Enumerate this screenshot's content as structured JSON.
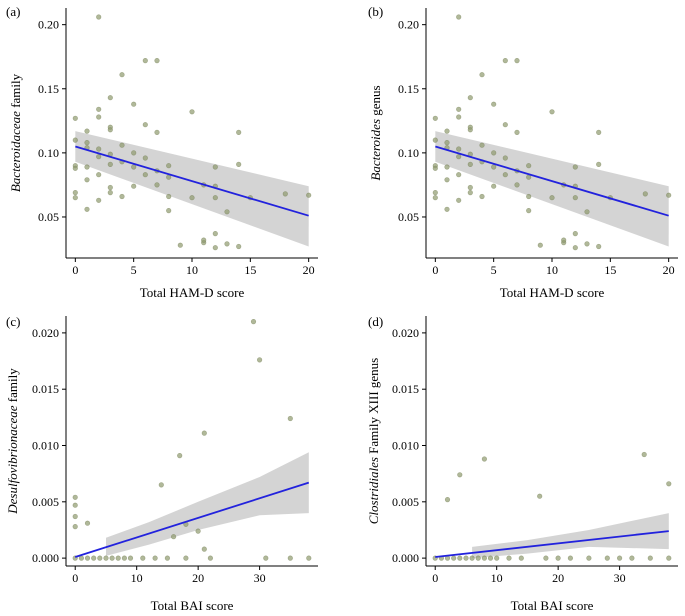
{
  "chart_data": [
    {
      "type": "scatter",
      "panel_label": "(a)",
      "ylabel_italic": "Bacteroidaceae",
      "ylabel_rest": " family",
      "xlabel": "Total HAM-D score",
      "xlim": [
        -0.8,
        20.8
      ],
      "ylim": [
        0.018,
        0.213
      ],
      "xticks": [
        0,
        5,
        10,
        15,
        20
      ],
      "yticks": [
        0.05,
        0.1,
        0.15,
        0.2
      ],
      "ytick_labels": [
        "0.05",
        "0.10",
        "0.15",
        "0.20"
      ],
      "fit": {
        "x": [
          0,
          20
        ],
        "y": [
          0.105,
          0.051
        ]
      },
      "ci_band": {
        "x": [
          0,
          20
        ],
        "upper": [
          0.117,
          0.074
        ],
        "lower": [
          0.093,
          0.027
        ]
      },
      "points": [
        [
          0,
          0.127
        ],
        [
          0,
          0.11
        ],
        [
          0,
          0.09
        ],
        [
          0,
          0.088
        ],
        [
          0,
          0.069
        ],
        [
          0,
          0.065
        ],
        [
          1,
          0.117
        ],
        [
          1,
          0.108
        ],
        [
          1,
          0.104
        ],
        [
          1,
          0.089
        ],
        [
          1,
          0.079
        ],
        [
          1,
          0.056
        ],
        [
          2,
          0.206
        ],
        [
          2,
          0.134
        ],
        [
          2,
          0.128
        ],
        [
          2,
          0.103
        ],
        [
          2,
          0.097
        ],
        [
          2,
          0.083
        ],
        [
          2,
          0.063
        ],
        [
          3,
          0.143
        ],
        [
          3,
          0.12
        ],
        [
          3,
          0.118
        ],
        [
          3,
          0.099
        ],
        [
          3,
          0.091
        ],
        [
          3,
          0.073
        ],
        [
          3,
          0.069
        ],
        [
          4,
          0.161
        ],
        [
          4,
          0.106
        ],
        [
          4,
          0.093
        ],
        [
          4,
          0.066
        ],
        [
          5,
          0.138
        ],
        [
          5,
          0.1
        ],
        [
          5,
          0.089
        ],
        [
          5,
          0.074
        ],
        [
          6,
          0.172
        ],
        [
          6,
          0.122
        ],
        [
          6,
          0.096
        ],
        [
          6,
          0.083
        ],
        [
          7,
          0.172
        ],
        [
          7,
          0.116
        ],
        [
          7,
          0.086
        ],
        [
          7,
          0.075
        ],
        [
          8,
          0.09
        ],
        [
          8,
          0.081
        ],
        [
          8,
          0.066
        ],
        [
          8,
          0.055
        ],
        [
          9,
          0.028
        ],
        [
          10,
          0.132
        ],
        [
          10,
          0.065
        ],
        [
          11,
          0.075
        ],
        [
          11,
          0.03
        ],
        [
          11,
          0.032
        ],
        [
          12,
          0.089
        ],
        [
          12,
          0.074
        ],
        [
          12,
          0.065
        ],
        [
          12,
          0.037
        ],
        [
          12,
          0.026
        ],
        [
          13,
          0.054
        ],
        [
          13,
          0.029
        ],
        [
          14,
          0.116
        ],
        [
          14,
          0.027
        ],
        [
          14,
          0.091
        ],
        [
          15,
          0.065
        ],
        [
          18,
          0.068
        ],
        [
          20,
          0.067
        ]
      ]
    },
    {
      "type": "scatter",
      "panel_label": "(b)",
      "ylabel_italic": "Bacteroides",
      "ylabel_rest": " genus",
      "xlabel": "Total HAM-D score",
      "xlim": [
        -0.8,
        20.8
      ],
      "ylim": [
        0.018,
        0.213
      ],
      "xticks": [
        0,
        5,
        10,
        15,
        20
      ],
      "yticks": [
        0.05,
        0.1,
        0.15,
        0.2
      ],
      "ytick_labels": [
        "0.05",
        "0.10",
        "0.15",
        "0.20"
      ],
      "fit": {
        "x": [
          0,
          20
        ],
        "y": [
          0.105,
          0.051
        ]
      },
      "ci_band": {
        "x": [
          0,
          20
        ],
        "upper": [
          0.117,
          0.074
        ],
        "lower": [
          0.093,
          0.027
        ]
      },
      "points": [
        [
          0,
          0.127
        ],
        [
          0,
          0.11
        ],
        [
          0,
          0.09
        ],
        [
          0,
          0.088
        ],
        [
          0,
          0.069
        ],
        [
          0,
          0.065
        ],
        [
          1,
          0.117
        ],
        [
          1,
          0.108
        ],
        [
          1,
          0.104
        ],
        [
          1,
          0.089
        ],
        [
          1,
          0.079
        ],
        [
          1,
          0.056
        ],
        [
          2,
          0.206
        ],
        [
          2,
          0.134
        ],
        [
          2,
          0.128
        ],
        [
          2,
          0.103
        ],
        [
          2,
          0.097
        ],
        [
          2,
          0.083
        ],
        [
          2,
          0.063
        ],
        [
          3,
          0.143
        ],
        [
          3,
          0.12
        ],
        [
          3,
          0.118
        ],
        [
          3,
          0.099
        ],
        [
          3,
          0.091
        ],
        [
          3,
          0.073
        ],
        [
          3,
          0.069
        ],
        [
          4,
          0.161
        ],
        [
          4,
          0.106
        ],
        [
          4,
          0.093
        ],
        [
          4,
          0.066
        ],
        [
          5,
          0.138
        ],
        [
          5,
          0.1
        ],
        [
          5,
          0.089
        ],
        [
          5,
          0.074
        ],
        [
          6,
          0.172
        ],
        [
          6,
          0.122
        ],
        [
          6,
          0.096
        ],
        [
          6,
          0.083
        ],
        [
          7,
          0.172
        ],
        [
          7,
          0.116
        ],
        [
          7,
          0.086
        ],
        [
          7,
          0.075
        ],
        [
          8,
          0.09
        ],
        [
          8,
          0.081
        ],
        [
          8,
          0.066
        ],
        [
          8,
          0.055
        ],
        [
          9,
          0.028
        ],
        [
          10,
          0.132
        ],
        [
          10,
          0.065
        ],
        [
          11,
          0.075
        ],
        [
          11,
          0.03
        ],
        [
          11,
          0.032
        ],
        [
          12,
          0.089
        ],
        [
          12,
          0.074
        ],
        [
          12,
          0.065
        ],
        [
          12,
          0.037
        ],
        [
          12,
          0.026
        ],
        [
          13,
          0.054
        ],
        [
          13,
          0.029
        ],
        [
          14,
          0.116
        ],
        [
          14,
          0.027
        ],
        [
          14,
          0.091
        ],
        [
          15,
          0.065
        ],
        [
          18,
          0.068
        ],
        [
          20,
          0.067
        ]
      ]
    },
    {
      "type": "scatter",
      "panel_label": "(c)",
      "ylabel_italic": "Desulfovibrionaceae",
      "ylabel_rest": " family",
      "xlabel": "Total BAI score",
      "xlim": [
        -1.5,
        39.5
      ],
      "ylim": [
        -0.0007,
        0.0215
      ],
      "xticks": [
        0,
        10,
        20,
        30
      ],
      "yticks": [
        0.0,
        0.005,
        0.01,
        0.015,
        0.02
      ],
      "ytick_labels": [
        "0.000",
        "0.005",
        "0.010",
        "0.015",
        "0.020"
      ],
      "fit": {
        "x": [
          0,
          38
        ],
        "y": [
          0.0001,
          0.0067
        ]
      },
      "ci_band": {
        "x": [
          5,
          12,
          20,
          30,
          38
        ],
        "upper": [
          0.0018,
          0.0032,
          0.005,
          0.0072,
          0.0094
        ],
        "lower": [
          0.0002,
          0.0012,
          0.0025,
          0.0038,
          0.004
        ]
      },
      "points": [
        [
          0,
          0.0054
        ],
        [
          0,
          0.0047
        ],
        [
          0,
          0.0037
        ],
        [
          0,
          0.0028
        ],
        [
          0,
          0.0
        ],
        [
          1,
          0.0
        ],
        [
          2,
          0.0031
        ],
        [
          2,
          0.0
        ],
        [
          3,
          0.0
        ],
        [
          4,
          0.0
        ],
        [
          5,
          0.0
        ],
        [
          6,
          0.0
        ],
        [
          7,
          0.0
        ],
        [
          8,
          0.0
        ],
        [
          9,
          0.0
        ],
        [
          11,
          0.0
        ],
        [
          13,
          0.0
        ],
        [
          14,
          0.0065
        ],
        [
          15,
          0.0
        ],
        [
          16,
          0.0019
        ],
        [
          17,
          0.0091
        ],
        [
          18,
          0.003
        ],
        [
          18,
          0.0
        ],
        [
          20,
          0.0024
        ],
        [
          21,
          0.0111
        ],
        [
          21,
          0.0008
        ],
        [
          22,
          0.0
        ],
        [
          29,
          0.021
        ],
        [
          30,
          0.0176
        ],
        [
          31,
          0.0
        ],
        [
          35,
          0.0124
        ],
        [
          35,
          0.0
        ],
        [
          38,
          0.0
        ]
      ]
    },
    {
      "type": "scatter",
      "panel_label": "(d)",
      "ylabel_italic": "Clostridiales",
      "ylabel_rest": " Family XIII genus",
      "xlabel": "Total BAI score",
      "xlim": [
        -1.5,
        39.5
      ],
      "ylim": [
        -0.0007,
        0.0215
      ],
      "xticks": [
        0,
        10,
        20,
        30
      ],
      "yticks": [
        0.0,
        0.005,
        0.01,
        0.015,
        0.02
      ],
      "ytick_labels": [
        "0.000",
        "0.005",
        "0.010",
        "0.015",
        "0.020"
      ],
      "fit": {
        "x": [
          0,
          38
        ],
        "y": [
          0.0001,
          0.0024
        ]
      },
      "ci_band": {
        "x": [
          6,
          15,
          25,
          38
        ],
        "upper": [
          0.001,
          0.0016,
          0.0025,
          0.004
        ],
        "lower": [
          0.0,
          0.0004,
          0.001,
          0.0008
        ]
      },
      "points": [
        [
          0,
          0.0
        ],
        [
          1,
          0.0
        ],
        [
          2,
          0.0052
        ],
        [
          2,
          0.0
        ],
        [
          3,
          0.0
        ],
        [
          4,
          0.0074
        ],
        [
          4,
          0.0
        ],
        [
          5,
          0.0
        ],
        [
          6,
          0.0
        ],
        [
          7,
          0.0
        ],
        [
          8,
          0.0088
        ],
        [
          8,
          0.0
        ],
        [
          9,
          0.0
        ],
        [
          10,
          0.0
        ],
        [
          12,
          0.0
        ],
        [
          14,
          0.0
        ],
        [
          17,
          0.0055
        ],
        [
          18,
          0.0
        ],
        [
          20,
          0.0
        ],
        [
          22,
          0.0
        ],
        [
          25,
          0.0
        ],
        [
          28,
          0.0
        ],
        [
          30,
          0.0
        ],
        [
          32,
          0.0
        ],
        [
          34,
          0.0092
        ],
        [
          35,
          0.0
        ],
        [
          38,
          0.0066
        ],
        [
          38,
          0.0
        ]
      ]
    }
  ]
}
